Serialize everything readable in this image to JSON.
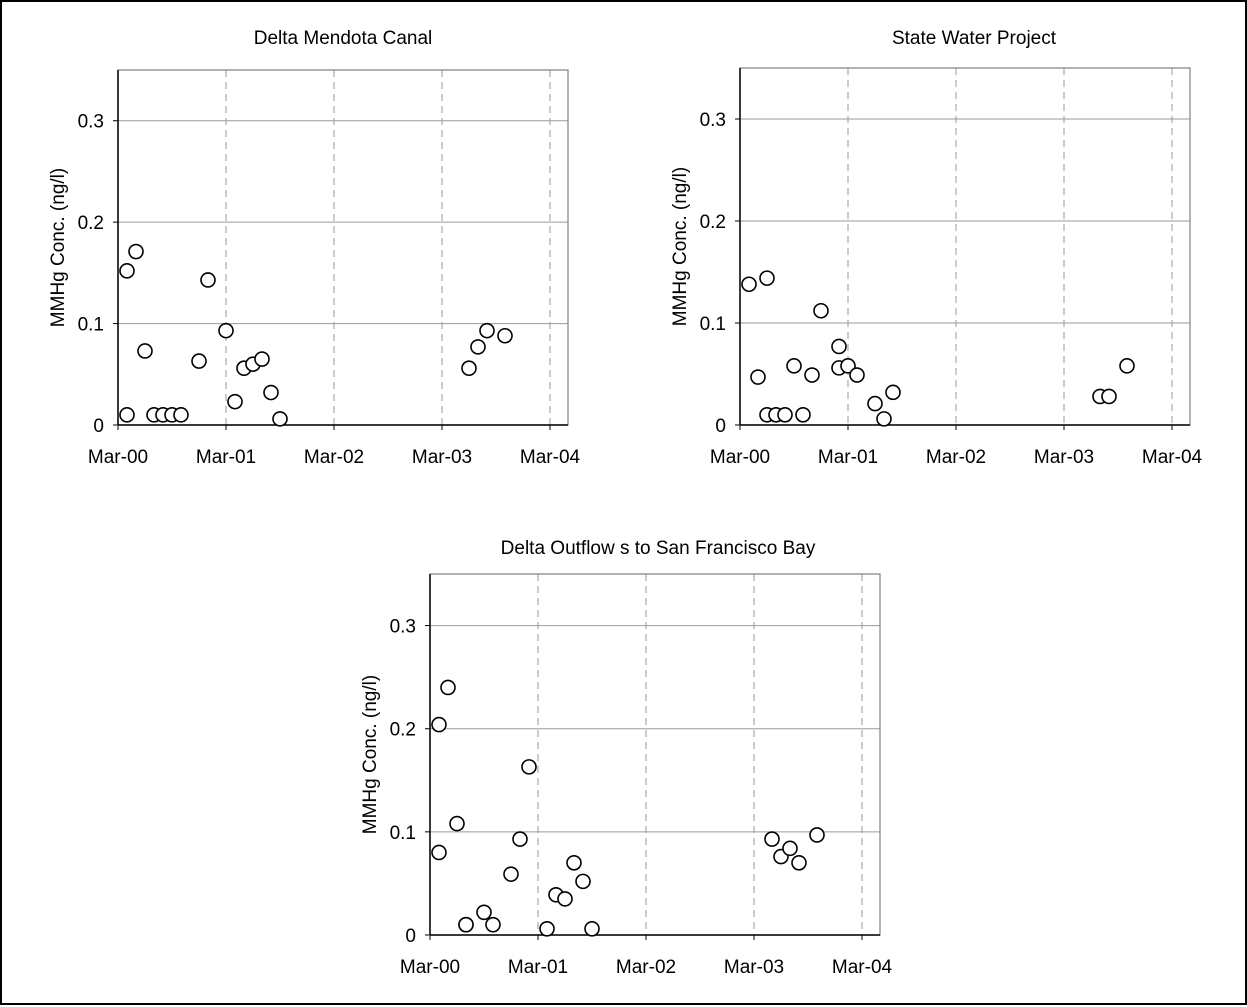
{
  "chart_data": [
    {
      "type": "scatter",
      "title": "Delta Mendota Canal",
      "xlabel": "",
      "ylabel": "MMHg Conc. (ng/l)",
      "x_ticks": [
        "Mar-00",
        "Mar-01",
        "Mar-02",
        "Mar-03",
        "Mar-04"
      ],
      "y_ticks": [
        "0",
        "0.1",
        "0.2",
        "0.3"
      ],
      "xlim": [
        "Mar-00",
        "May-04"
      ],
      "ylim": [
        0,
        0.35
      ],
      "grid": {
        "x": "dashed",
        "y": "solid"
      },
      "marker": "open-circle",
      "points": [
        {
          "x": "Apr-00",
          "y": 0.152
        },
        {
          "x": "Apr-00",
          "y": 0.01
        },
        {
          "x": "May-00",
          "y": 0.171
        },
        {
          "x": "Jun-00",
          "y": 0.073
        },
        {
          "x": "Jul-00",
          "y": 0.01
        },
        {
          "x": "Aug-00",
          "y": 0.01
        },
        {
          "x": "Sep-00",
          "y": 0.01
        },
        {
          "x": "Oct-00",
          "y": 0.01
        },
        {
          "x": "Dec-00",
          "y": 0.063
        },
        {
          "x": "Jan-01",
          "y": 0.143
        },
        {
          "x": "Mar-01",
          "y": 0.093
        },
        {
          "x": "Apr-01",
          "y": 0.023
        },
        {
          "x": "May-01",
          "y": 0.056
        },
        {
          "x": "Jun-01",
          "y": 0.06
        },
        {
          "x": "Jul-01",
          "y": 0.065
        },
        {
          "x": "Aug-01",
          "y": 0.032
        },
        {
          "x": "Sep-01",
          "y": 0.006
        },
        {
          "x": "Jun-03",
          "y": 0.056
        },
        {
          "x": "Jul-03",
          "y": 0.077
        },
        {
          "x": "Aug-03",
          "y": 0.093
        },
        {
          "x": "Oct-03",
          "y": 0.088
        }
      ]
    },
    {
      "type": "scatter",
      "title": "State Water Project",
      "xlabel": "",
      "ylabel": "MMHg Conc. (ng/l)",
      "x_ticks": [
        "Mar-00",
        "Mar-01",
        "Mar-02",
        "Mar-03",
        "Mar-04"
      ],
      "y_ticks": [
        "0",
        "0.1",
        "0.2",
        "0.3"
      ],
      "xlim": [
        "Mar-00",
        "May-04"
      ],
      "ylim": [
        0,
        0.35
      ],
      "grid": {
        "x": "dashed",
        "y": "solid"
      },
      "marker": "open-circle",
      "points": [
        {
          "x": "Apr-00",
          "y": 0.138
        },
        {
          "x": "May-00",
          "y": 0.047
        },
        {
          "x": "Jun-00",
          "y": 0.144
        },
        {
          "x": "Jun-00",
          "y": 0.01
        },
        {
          "x": "Jul-00",
          "y": 0.01
        },
        {
          "x": "Aug-00",
          "y": 0.01
        },
        {
          "x": "Sep-00",
          "y": 0.058
        },
        {
          "x": "Oct-00",
          "y": 0.01
        },
        {
          "x": "Nov-00",
          "y": 0.049
        },
        {
          "x": "Dec-00",
          "y": 0.112
        },
        {
          "x": "Feb-01",
          "y": 0.077
        },
        {
          "x": "Feb-01",
          "y": 0.056
        },
        {
          "x": "Mar-01",
          "y": 0.058
        },
        {
          "x": "Apr-01",
          "y": 0.049
        },
        {
          "x": "Jun-01",
          "y": 0.021
        },
        {
          "x": "Jul-01",
          "y": 0.006
        },
        {
          "x": "Aug-01",
          "y": 0.032
        },
        {
          "x": "Jul-03",
          "y": 0.028
        },
        {
          "x": "Aug-03",
          "y": 0.028
        },
        {
          "x": "Oct-03",
          "y": 0.058
        }
      ]
    },
    {
      "type": "scatter",
      "title": "Delta Outflow s to San Francisco Bay",
      "xlabel": "",
      "ylabel": "MMHg Conc. (ng/l)",
      "x_ticks": [
        "Mar-00",
        "Mar-01",
        "Mar-02",
        "Mar-03",
        "Mar-04"
      ],
      "y_ticks": [
        "0",
        "0.1",
        "0.2",
        "0.3"
      ],
      "xlim": [
        "Mar-00",
        "May-04"
      ],
      "ylim": [
        0,
        0.35
      ],
      "grid": {
        "x": "dashed",
        "y": "solid"
      },
      "marker": "open-circle",
      "points": [
        {
          "x": "Apr-00",
          "y": 0.204
        },
        {
          "x": "Apr-00",
          "y": 0.08
        },
        {
          "x": "May-00",
          "y": 0.24
        },
        {
          "x": "Jun-00",
          "y": 0.108
        },
        {
          "x": "Jul-00",
          "y": 0.01
        },
        {
          "x": "Jul-00",
          "y": 0.01
        },
        {
          "x": "Sep-00",
          "y": 0.022
        },
        {
          "x": "Oct-00",
          "y": 0.01
        },
        {
          "x": "Dec-00",
          "y": 0.059
        },
        {
          "x": "Jan-01",
          "y": 0.093
        },
        {
          "x": "Feb-01",
          "y": 0.163
        },
        {
          "x": "Apr-01",
          "y": 0.006
        },
        {
          "x": "May-01",
          "y": 0.039
        },
        {
          "x": "Jun-01",
          "y": 0.035
        },
        {
          "x": "Jul-01",
          "y": 0.07
        },
        {
          "x": "Aug-01",
          "y": 0.052
        },
        {
          "x": "Sep-01",
          "y": 0.006
        },
        {
          "x": "May-03",
          "y": 0.093
        },
        {
          "x": "Jun-03",
          "y": 0.076
        },
        {
          "x": "Jul-03",
          "y": 0.084
        },
        {
          "x": "Aug-03",
          "y": 0.07
        },
        {
          "x": "Oct-03",
          "y": 0.097
        }
      ]
    }
  ]
}
